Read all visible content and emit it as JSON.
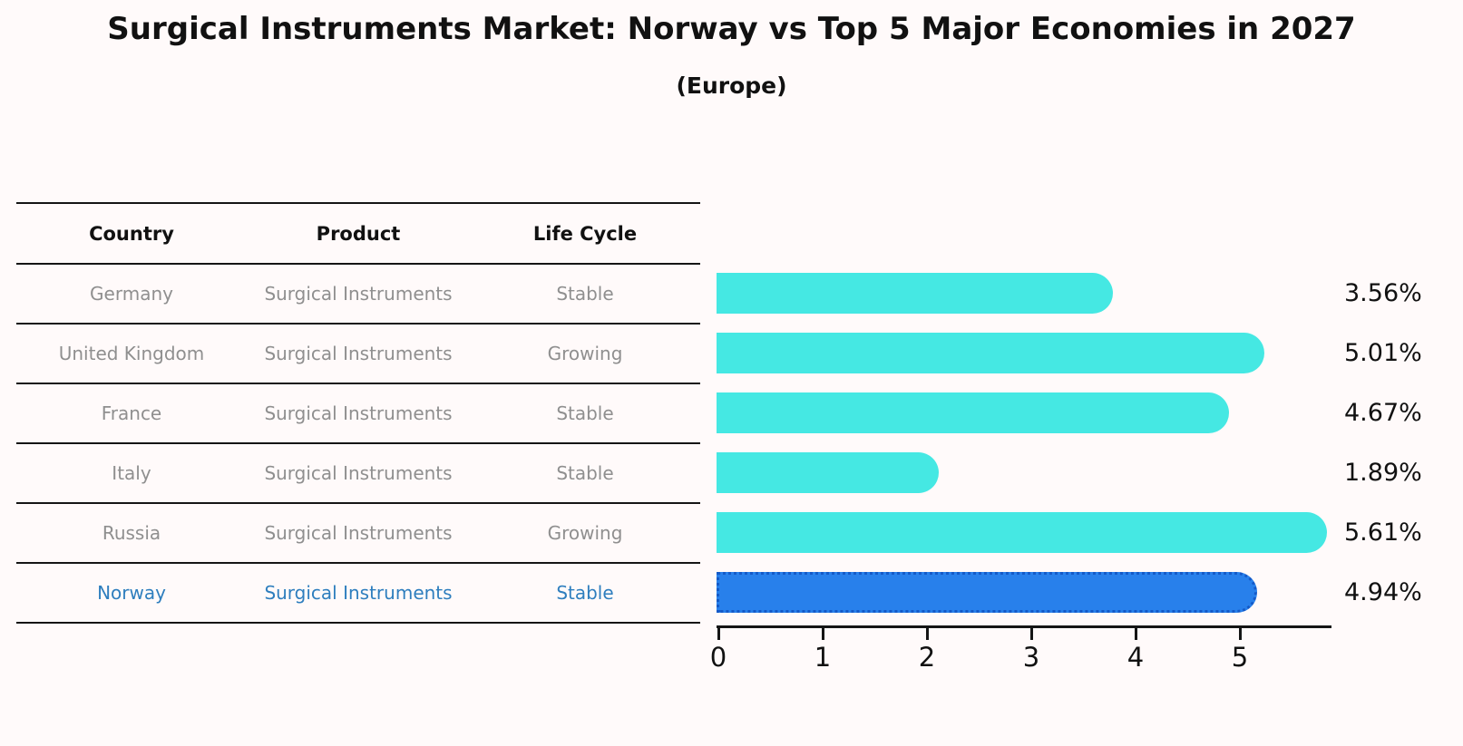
{
  "title": "Surgical Instruments Market: Norway vs Top 5 Major Economies in 2027",
  "subtitle": "(Europe)",
  "table": {
    "headers": [
      "Country",
      "Product",
      "Life Cycle"
    ],
    "rows": [
      {
        "country": "Germany",
        "product": "Surgical Instruments",
        "life_cycle": "Stable",
        "highlight": false
      },
      {
        "country": "United Kingdom",
        "product": "Surgical Instruments",
        "life_cycle": "Growing",
        "highlight": false
      },
      {
        "country": "France",
        "product": "Surgical Instruments",
        "life_cycle": "Stable",
        "highlight": false
      },
      {
        "country": "Italy",
        "product": "Surgical Instruments",
        "life_cycle": "Stable",
        "highlight": false
      },
      {
        "country": "Russia",
        "product": "Surgical Instruments",
        "life_cycle": "Growing",
        "highlight": false
      },
      {
        "country": "Norway",
        "product": "Surgical Instruments",
        "life_cycle": "Stable",
        "highlight": true
      }
    ]
  },
  "chart_data": {
    "type": "bar",
    "orientation": "horizontal",
    "title": "Surgical Instruments Market: Norway vs Top 5 Major Economies in 2027",
    "subtitle": "(Europe)",
    "categories": [
      "Germany",
      "United Kingdom",
      "France",
      "Italy",
      "Russia",
      "Norway"
    ],
    "values": [
      3.56,
      5.01,
      4.67,
      1.89,
      5.61,
      4.94
    ],
    "value_labels": [
      "3.56%",
      "5.01%",
      "4.67%",
      "1.89%",
      "5.61%",
      "4.94%"
    ],
    "x_ticks": [
      0,
      1,
      2,
      3,
      4,
      5
    ],
    "xlim": [
      0,
      5.9
    ],
    "grid": false,
    "legend": false,
    "highlight_index": 5,
    "bar_color": "#45e8e3",
    "highlight_bar_color": "#2880eb",
    "highlight_border_color": "#145ac8"
  },
  "colors": {
    "background": "#fffafa",
    "heading_text": "#111111",
    "table_text": "#8f8f8f",
    "highlight_text": "#2e7ebe",
    "line": "#151515"
  }
}
